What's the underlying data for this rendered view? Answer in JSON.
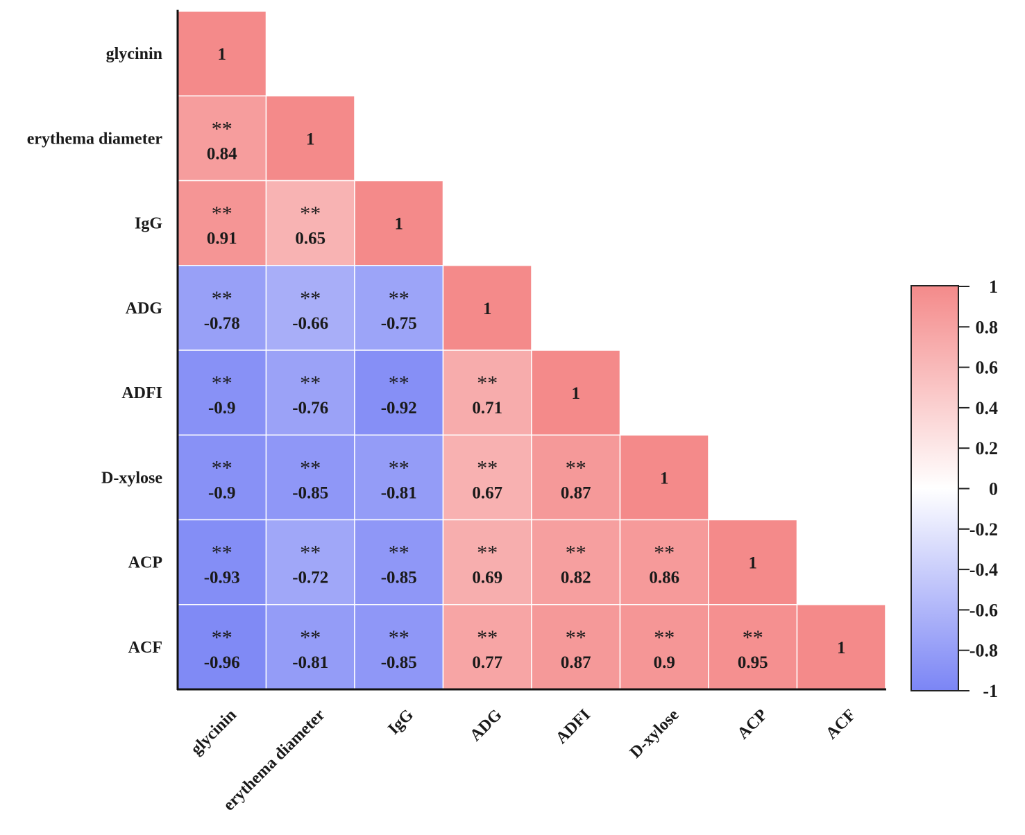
{
  "chart_data": {
    "type": "heatmap",
    "subtype": "lower-triangular correlation matrix",
    "variables": [
      "glycinin",
      "erythema diameter",
      "IgG",
      "ADG",
      "ADFI",
      "D-xylose",
      "ACP",
      "ACF"
    ],
    "matrix": [
      [
        1,
        null,
        null,
        null,
        null,
        null,
        null,
        null
      ],
      [
        0.84,
        1,
        null,
        null,
        null,
        null,
        null,
        null
      ],
      [
        0.91,
        0.65,
        1,
        null,
        null,
        null,
        null,
        null
      ],
      [
        -0.78,
        -0.66,
        -0.75,
        1,
        null,
        null,
        null,
        null
      ],
      [
        -0.9,
        -0.76,
        -0.92,
        0.71,
        1,
        null,
        null,
        null
      ],
      [
        -0.9,
        -0.85,
        -0.81,
        0.67,
        0.87,
        1,
        null,
        null
      ],
      [
        -0.93,
        -0.72,
        -0.85,
        0.69,
        0.82,
        0.86,
        1,
        null
      ],
      [
        -0.96,
        -0.81,
        -0.85,
        0.77,
        0.87,
        0.9,
        0.95,
        1
      ]
    ],
    "significance_marker": "**",
    "colorbar": {
      "range": [
        -1,
        1
      ],
      "ticks": [
        "1",
        "0.8",
        "0.6",
        "0.4",
        "0.2",
        "0",
        "-0.2",
        "-0.4",
        "-0.6",
        "-0.8",
        "-1"
      ],
      "color_positive": "#f48a8a",
      "color_zero": "#ffffff",
      "color_negative": "#7b85f5"
    }
  }
}
